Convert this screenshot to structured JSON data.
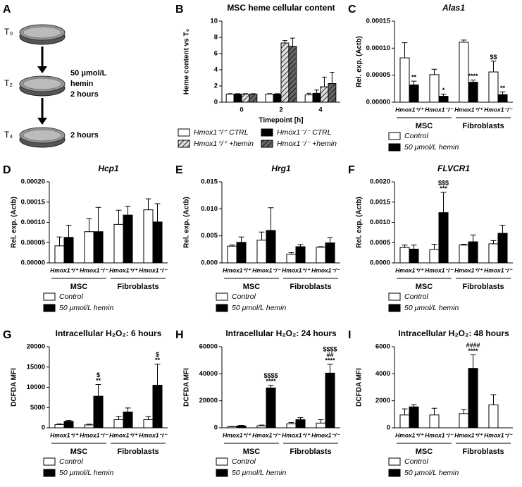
{
  "diagram": {
    "panel": "A",
    "steps": [
      {
        "label": "T₀",
        "note": []
      },
      {
        "label": "T₂",
        "note": [
          "50 μmol/L",
          "hemin",
          "2 hours"
        ]
      },
      {
        "label": "T₄",
        "note": [
          "2 hours"
        ]
      }
    ]
  },
  "chart_data": [
    {
      "type": "bar",
      "panel": "B",
      "title": "MSC heme cellular content",
      "ylabel": "Heme content vs T₀",
      "xlabel": "Timepoint [h]",
      "categories": [
        "0",
        "2",
        "4"
      ],
      "ylim": [
        0,
        10
      ],
      "yticks": [
        0,
        2,
        4,
        6,
        8,
        10
      ],
      "series": [
        {
          "name": "Hmox1⁺/⁺ CTRL",
          "color": "#ffffff",
          "hatch": false,
          "values": [
            1,
            1,
            0.9
          ],
          "errors": [
            0.05,
            0.05,
            0.2
          ]
        },
        {
          "name": "Hmox1⁻/⁻ CTRL",
          "color": "#000000",
          "hatch": false,
          "values": [
            1,
            1,
            1.1
          ],
          "errors": [
            0.05,
            0.05,
            0.4
          ]
        },
        {
          "name": "Hmox1⁺/⁺ +hemin",
          "color": "#dddddd",
          "hatch": true,
          "values": [
            1,
            7.3,
            1.9
          ],
          "errors": [
            0.05,
            0.3,
            1.2
          ]
        },
        {
          "name": "Hmox1⁻/⁻ +hemin",
          "color": "#666666",
          "hatch": true,
          "values": [
            1,
            6.9,
            2.3
          ],
          "errors": [
            0.05,
            1.0,
            1.4
          ]
        }
      ]
    },
    {
      "type": "bar",
      "panel": "C",
      "title": "Alas1",
      "ylabel": "Rel. exp. (Actb)",
      "categories": [
        "Hmox1⁺/⁺",
        "Hmox1⁻/⁻",
        "Hmox1⁺/⁺",
        "Hmox1⁻/⁻"
      ],
      "groups": [
        "MSC",
        "Fibroblasts"
      ],
      "ylim": [
        0,
        0.00015
      ],
      "yticks": [
        {
          "value": 0,
          "label": "0.00000"
        },
        {
          "value": 5e-05,
          "label": "0.00005"
        },
        {
          "value": 0.0001,
          "label": "0.00010"
        },
        {
          "value": 0.00015,
          "label": "0.00015"
        }
      ],
      "series": [
        {
          "name": "Control",
          "color": "#ffffff",
          "values": [
            8.2e-05,
            5.1e-05,
            0.000111,
            5.6e-05
          ],
          "errors": [
            2.8e-05,
            1e-05,
            4e-06,
            2e-05
          ],
          "annotations": [
            null,
            null,
            null,
            [
              "$$"
            ]
          ]
        },
        {
          "name": "50 μmol/L hemin",
          "color": "#000000",
          "values": [
            3.2e-05,
            1.1e-05,
            3.7e-05,
            1.4e-05
          ],
          "errors": [
            7e-06,
            4e-06,
            4e-06,
            5e-06
          ],
          "annotations": [
            [
              "**"
            ],
            [
              "*"
            ],
            [
              "****"
            ],
            [
              "**"
            ]
          ]
        }
      ]
    },
    {
      "type": "bar",
      "panel": "D",
      "title": "Hcp1",
      "ylabel": "Rel. exp. (Actb)",
      "categories": [
        "Hmox1⁺/⁺",
        "Hmox1⁻/⁻",
        "Hmox1⁺/⁺",
        "Hmox1⁻/⁻"
      ],
      "groups": [
        "MSC",
        "Fibroblasts"
      ],
      "ylim": [
        0,
        0.0002
      ],
      "yticks": [
        {
          "value": 0,
          "label": "0.00000"
        },
        {
          "value": 5e-05,
          "label": "0.00005"
        },
        {
          "value": 0.0001,
          "label": "0.00010"
        },
        {
          "value": 0.00015,
          "label": "0.00015"
        },
        {
          "value": 0.0002,
          "label": "0.00020"
        }
      ],
      "series": [
        {
          "name": "Control",
          "color": "#ffffff",
          "values": [
            4.2e-05,
            7.7e-05,
            9.5e-05,
            0.000131
          ],
          "errors": [
            2.2e-05,
            3.2e-05,
            3.5e-05,
            2.7e-05
          ]
        },
        {
          "name": "50 μmol/L hemin",
          "color": "#000000",
          "values": [
            6.3e-05,
            7.7e-05,
            0.000118,
            0.000101
          ],
          "errors": [
            3e-05,
            6e-05,
            2.2e-05,
            4.5e-05
          ]
        }
      ]
    },
    {
      "type": "bar",
      "panel": "E",
      "title": "Hrg1",
      "ylabel": "Rel. exp. (Actb)",
      "categories": [
        "Hmox1⁺/⁺",
        "Hmox1⁻/⁻",
        "Hmox1⁺/⁺",
        "Hmox1⁻/⁻"
      ],
      "groups": [
        "MSC",
        "Fibroblasts"
      ],
      "ylim": [
        0,
        0.015
      ],
      "yticks": [
        {
          "value": 0,
          "label": "0.000"
        },
        {
          "value": 0.005,
          "label": "0.005"
        },
        {
          "value": 0.01,
          "label": "0.010"
        },
        {
          "value": 0.015,
          "label": "0.015"
        }
      ],
      "series": [
        {
          "name": "Control",
          "color": "#ffffff",
          "values": [
            0.0031,
            0.0042,
            0.0016,
            0.0029
          ],
          "errors": [
            0.0002,
            0.0015,
            0.0003,
            0.0001
          ]
        },
        {
          "name": "50 μmol/L hemin",
          "color": "#000000",
          "values": [
            0.0038,
            0.006,
            0.003,
            0.0037
          ],
          "errors": [
            0.001,
            0.0042,
            0.0004,
            0.001
          ]
        }
      ]
    },
    {
      "type": "bar",
      "panel": "F",
      "title": "FLVCR1",
      "ylabel": "Rel. exp. (Actb)",
      "categories": [
        "Hmox1⁺/⁺",
        "Hmox1⁻/⁻",
        "Hmox1⁺/⁺",
        "Hmox1⁻/⁻"
      ],
      "groups": [
        "MSC",
        "Fibroblasts"
      ],
      "ylim": [
        0,
        0.002
      ],
      "yticks": [
        {
          "value": 0,
          "label": "0.0000"
        },
        {
          "value": 0.0005,
          "label": "0.0005"
        },
        {
          "value": 0.001,
          "label": "0.0010"
        },
        {
          "value": 0.0015,
          "label": "0.0015"
        },
        {
          "value": 0.002,
          "label": "0.0020"
        }
      ],
      "series": [
        {
          "name": "Control",
          "color": "#ffffff",
          "values": [
            0.00038,
            0.00033,
            0.00044,
            0.00047
          ],
          "errors": [
            6e-05,
            0.00013,
            2e-05,
            8e-05
          ]
        },
        {
          "name": "50 μmol/L hemin",
          "color": "#000000",
          "values": [
            0.00034,
            0.00124,
            0.00052,
            0.00073
          ],
          "errors": [
            0.0001,
            0.0005,
            0.00017,
            0.0002
          ],
          "annotations": [
            null,
            [
              "$$$",
              "***"
            ],
            null,
            null
          ]
        }
      ]
    },
    {
      "type": "bar",
      "panel": "G",
      "title": "Intracellular H₂O₂: 6 hours",
      "ylabel": "DCFDA MFI",
      "categories": [
        "Hmox1⁺/⁺",
        "Hmox1⁻/⁻",
        "Hmox1⁺/⁺",
        "Hmox1⁻/⁻"
      ],
      "groups": [
        "MSC",
        "Fibroblasts"
      ],
      "ylim": [
        0,
        20000
      ],
      "yticks": [
        0,
        5000,
        10000,
        15000,
        20000
      ],
      "series": [
        {
          "name": "Control",
          "color": "#ffffff",
          "values": [
            800,
            700,
            2000,
            2000
          ],
          "errors": [
            150,
            200,
            800,
            800
          ]
        },
        {
          "name": "50 μmol/L hemin",
          "color": "#000000",
          "values": [
            1600,
            7800,
            3900,
            10500
          ],
          "errors": [
            200,
            2900,
            1000,
            5200
          ],
          "annotations": [
            null,
            [
              "$",
              "**"
            ],
            null,
            [
              "$",
              "**"
            ]
          ]
        }
      ]
    },
    {
      "type": "bar",
      "panel": "H",
      "title": "Intracellular H₂O₂: 24 hours",
      "ylabel": "DCFDA MFI",
      "categories": [
        "Hmox1⁺/⁺",
        "Hmox1⁻/⁻",
        "Hmox1⁺/⁺",
        "Hmox1⁻/⁻"
      ],
      "groups": [
        "MSC",
        "Fibroblasts"
      ],
      "ylim": [
        0,
        60000
      ],
      "yticks": [
        0,
        20000,
        40000,
        60000
      ],
      "series": [
        {
          "name": "Control",
          "color": "#ffffff",
          "values": [
            800,
            1500,
            3000,
            3500
          ],
          "errors": [
            200,
            500,
            1000,
            2500
          ]
        },
        {
          "name": "50 μmol/L hemin",
          "color": "#000000",
          "values": [
            1400,
            29500,
            6000,
            40500
          ],
          "errors": [
            400,
            2000,
            1500,
            6500
          ],
          "annotations": [
            null,
            [
              "$$$$",
              "****"
            ],
            null,
            [
              "$$$$",
              "##",
              "****"
            ]
          ]
        }
      ]
    },
    {
      "type": "bar",
      "panel": "I",
      "title": "Intracellular H₂O₂: 48 hours",
      "ylabel": "DCFDA MFI",
      "categories": [
        "Hmox1⁺/⁺",
        "Hmox1⁻/⁻",
        "Hmox1⁺/⁺",
        "Hmox1⁻/⁻"
      ],
      "groups": [
        "MSC",
        "Fibroblasts"
      ],
      "ylim": [
        0,
        6000
      ],
      "yticks": [
        0,
        2000,
        4000,
        6000
      ],
      "series": [
        {
          "name": "Control",
          "color": "#ffffff",
          "values": [
            950,
            950,
            1050,
            1700
          ],
          "errors": [
            450,
            500,
            300,
            750
          ]
        },
        {
          "name": "50 μmol/L hemin",
          "color": "#000000",
          "values": [
            1550,
            null,
            4400,
            null
          ],
          "errors": [
            150,
            null,
            1000,
            null
          ],
          "annotations": [
            null,
            null,
            [
              "####",
              "****"
            ],
            null
          ]
        }
      ]
    }
  ]
}
